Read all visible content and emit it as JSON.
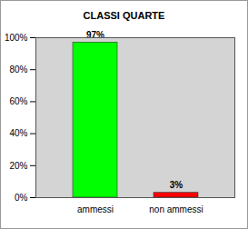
{
  "chart_data": {
    "type": "bar",
    "title": "CLASSI QUARTE",
    "categories": [
      "ammessi",
      "non ammessi"
    ],
    "values": [
      97,
      3
    ],
    "value_labels": [
      "97%",
      "3%"
    ],
    "colors": [
      "#00ff00",
      "#ff0000"
    ],
    "ylim": [
      0,
      100
    ],
    "yticks": [
      {
        "value": 0,
        "label": "0%"
      },
      {
        "value": 20,
        "label": "20%"
      },
      {
        "value": 40,
        "label": "40%"
      },
      {
        "value": 60,
        "label": "60%"
      },
      {
        "value": 80,
        "label": "80%"
      },
      {
        "value": 100,
        "label": "100%"
      }
    ],
    "grid": true,
    "data_labels": true
  }
}
